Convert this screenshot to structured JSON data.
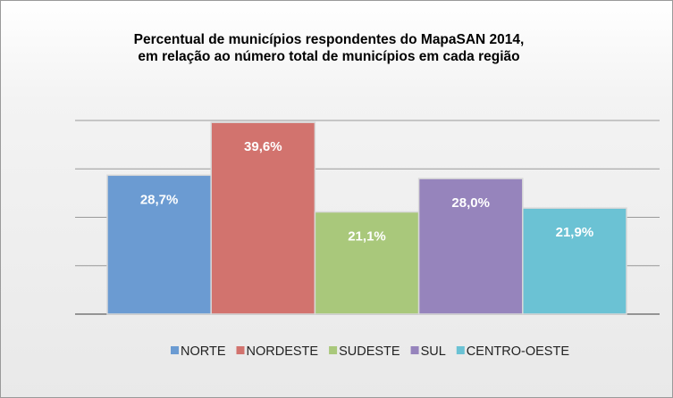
{
  "chart_data": {
    "type": "bar",
    "title": [
      "Percentual de municípios respondentes do MapaSAN 2014,",
      "em relação ao número total de municípios em cada região"
    ],
    "categories": [
      "NORTE",
      "NORDESTE",
      "SUDESTE",
      "SUL",
      "CENTRO-OESTE"
    ],
    "values": [
      28.7,
      39.6,
      21.1,
      28.0,
      21.9
    ],
    "value_labels": [
      "28,7%",
      "39,6%",
      "21,1%",
      "28,0%",
      "21,9%"
    ],
    "colors": [
      "#6b9bd2",
      "#d2736e",
      "#a9c87b",
      "#9684bc",
      "#6bc2d4"
    ],
    "ylim": [
      0,
      40
    ],
    "yticks": [
      0,
      10,
      20,
      30,
      40
    ],
    "grid": true,
    "legend": "bottom"
  }
}
